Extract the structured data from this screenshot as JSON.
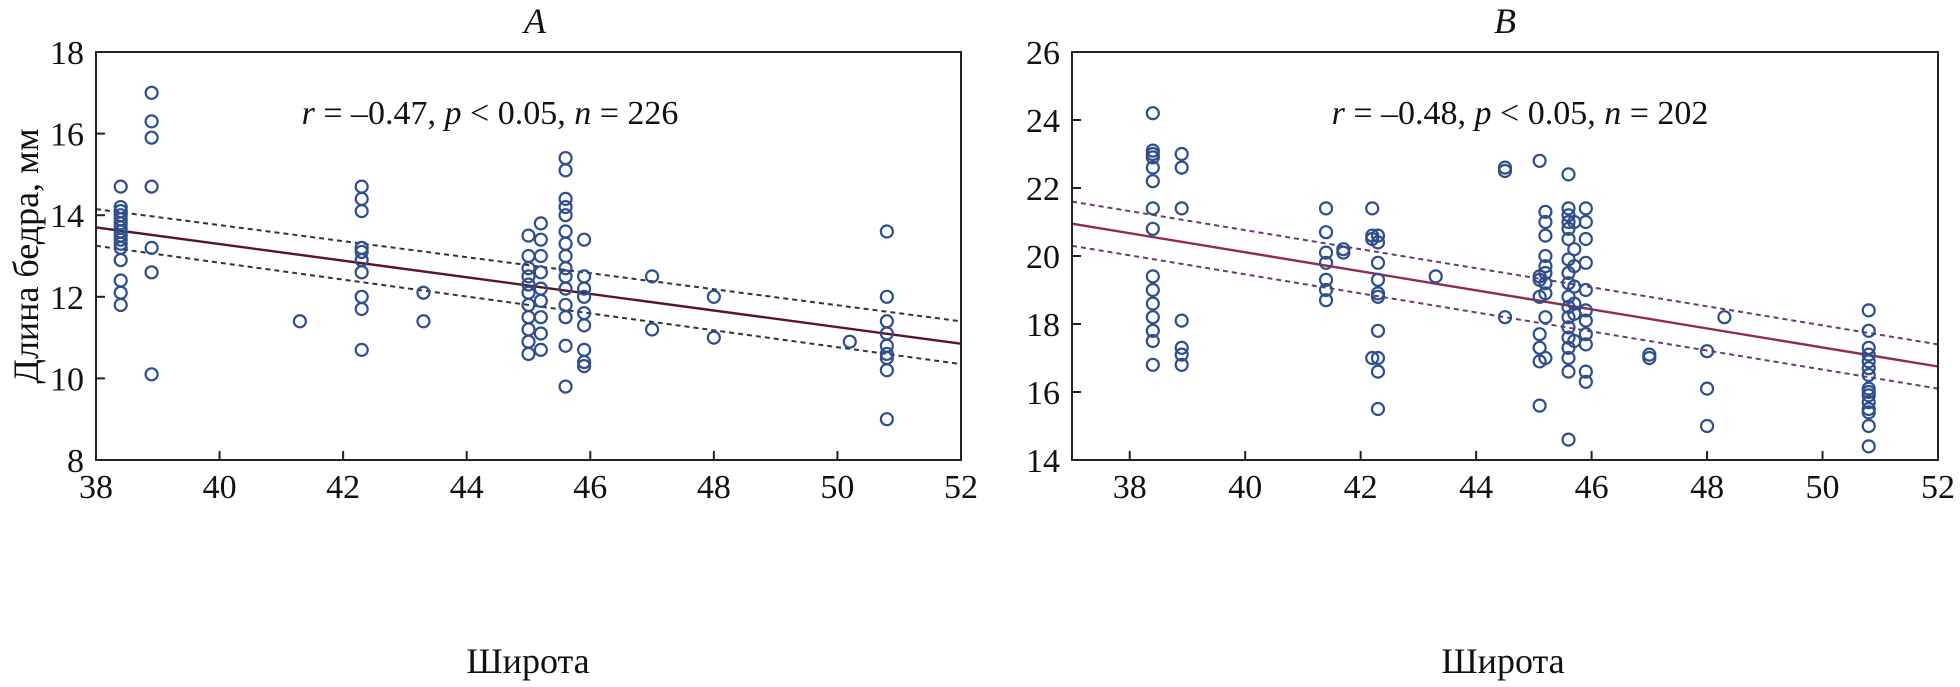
{
  "chart_data": [
    {
      "type": "scatter",
      "title": "A",
      "xlabel": "Широта",
      "ylabel": "Длина бедра, мм",
      "xlim": [
        38,
        52
      ],
      "ylim": [
        8,
        18
      ],
      "xticks": [
        "38",
        "40",
        "42",
        "44",
        "46",
        "48",
        "50",
        "52"
      ],
      "yticks": [
        "8",
        "10",
        "12",
        "14",
        "16",
        "18"
      ],
      "annotation": {
        "r": "r",
        "r_value": " = –0.47, ",
        "p": "p",
        "p_value": " < 0.05, ",
        "n": "n",
        "n_value": " = 226"
      },
      "grid": false,
      "fit": {
        "x": [
          38,
          52
        ],
        "y": [
          13.7,
          10.85
        ]
      },
      "ci_upper": {
        "x": [
          38,
          52
        ],
        "y": [
          14.15,
          11.4
        ]
      },
      "ci_lower": {
        "x": [
          38,
          52
        ],
        "y": [
          13.25,
          10.35
        ]
      },
      "points": [
        [
          38.4,
          14.7
        ],
        [
          38.4,
          14.2
        ],
        [
          38.4,
          14.1
        ],
        [
          38.4,
          14.0
        ],
        [
          38.4,
          13.9
        ],
        [
          38.4,
          13.8
        ],
        [
          38.4,
          13.7
        ],
        [
          38.4,
          13.6
        ],
        [
          38.4,
          13.5
        ],
        [
          38.4,
          13.4
        ],
        [
          38.4,
          13.3
        ],
        [
          38.4,
          13.2
        ],
        [
          38.4,
          12.9
        ],
        [
          38.4,
          12.4
        ],
        [
          38.4,
          12.1
        ],
        [
          38.4,
          11.8
        ],
        [
          38.9,
          17.0
        ],
        [
          38.9,
          16.3
        ],
        [
          38.9,
          15.9
        ],
        [
          38.9,
          14.7
        ],
        [
          38.9,
          13.2
        ],
        [
          38.9,
          12.6
        ],
        [
          38.9,
          10.1
        ],
        [
          41.3,
          11.4
        ],
        [
          42.3,
          14.7
        ],
        [
          42.3,
          14.4
        ],
        [
          42.3,
          14.1
        ],
        [
          42.3,
          13.2
        ],
        [
          42.3,
          13.1
        ],
        [
          42.3,
          12.9
        ],
        [
          42.3,
          12.6
        ],
        [
          42.3,
          12.0
        ],
        [
          42.3,
          11.7
        ],
        [
          42.3,
          10.7
        ],
        [
          43.3,
          12.1
        ],
        [
          43.3,
          11.4
        ],
        [
          45.0,
          13.5
        ],
        [
          45.0,
          13.0
        ],
        [
          45.0,
          12.7
        ],
        [
          45.0,
          12.5
        ],
        [
          45.0,
          12.3
        ],
        [
          45.0,
          12.1
        ],
        [
          45.0,
          11.8
        ],
        [
          45.0,
          11.5
        ],
        [
          45.0,
          11.2
        ],
        [
          45.0,
          10.9
        ],
        [
          45.0,
          10.6
        ],
        [
          45.2,
          13.8
        ],
        [
          45.2,
          13.4
        ],
        [
          45.2,
          13.0
        ],
        [
          45.2,
          12.6
        ],
        [
          45.2,
          12.2
        ],
        [
          45.2,
          11.9
        ],
        [
          45.2,
          11.5
        ],
        [
          45.2,
          11.1
        ],
        [
          45.2,
          10.7
        ],
        [
          45.6,
          15.4
        ],
        [
          45.6,
          15.1
        ],
        [
          45.6,
          14.4
        ],
        [
          45.6,
          14.2
        ],
        [
          45.6,
          14.0
        ],
        [
          45.6,
          13.6
        ],
        [
          45.6,
          13.3
        ],
        [
          45.6,
          13.0
        ],
        [
          45.6,
          12.7
        ],
        [
          45.6,
          12.5
        ],
        [
          45.6,
          12.2
        ],
        [
          45.6,
          11.8
        ],
        [
          45.6,
          11.5
        ],
        [
          45.6,
          10.8
        ],
        [
          45.6,
          9.8
        ],
        [
          45.9,
          13.4
        ],
        [
          45.9,
          12.5
        ],
        [
          45.9,
          12.2
        ],
        [
          45.9,
          12.0
        ],
        [
          45.9,
          11.6
        ],
        [
          45.9,
          11.3
        ],
        [
          45.9,
          10.7
        ],
        [
          45.9,
          10.4
        ],
        [
          45.9,
          10.3
        ],
        [
          47.0,
          12.5
        ],
        [
          47.0,
          11.2
        ],
        [
          48.0,
          12.0
        ],
        [
          48.0,
          11.0
        ],
        [
          50.2,
          10.9
        ],
        [
          50.8,
          13.6
        ],
        [
          50.8,
          12.0
        ],
        [
          50.8,
          11.4
        ],
        [
          50.8,
          11.1
        ],
        [
          50.8,
          10.8
        ],
        [
          50.8,
          10.6
        ],
        [
          50.8,
          10.5
        ],
        [
          50.8,
          10.2
        ],
        [
          50.8,
          9.0
        ]
      ]
    },
    {
      "type": "scatter",
      "title": "B",
      "xlabel": "Широта",
      "ylabel": "",
      "xlim": [
        37,
        52
      ],
      "ylim": [
        14,
        26
      ],
      "xticks": [
        "38",
        "40",
        "42",
        "44",
        "46",
        "48",
        "50",
        "52"
      ],
      "yticks": [
        "14",
        "16",
        "18",
        "20",
        "22",
        "24",
        "26"
      ],
      "annotation": {
        "r": "r",
        "r_value": " = –0.48, ",
        "p": "p",
        "p_value": " < 0.05, ",
        "n": "n",
        "n_value": " = 202"
      },
      "grid": false,
      "fit": {
        "x": [
          37,
          52
        ],
        "y": [
          20.95,
          16.75
        ]
      },
      "ci_upper": {
        "x": [
          37,
          52
        ],
        "y": [
          21.6,
          17.4
        ]
      },
      "ci_lower": {
        "x": [
          37,
          52
        ],
        "y": [
          20.3,
          16.1
        ]
      },
      "points": [
        [
          38.4,
          24.2
        ],
        [
          38.4,
          23.1
        ],
        [
          38.4,
          23.0
        ],
        [
          38.4,
          22.9
        ],
        [
          38.4,
          22.6
        ],
        [
          38.4,
          22.2
        ],
        [
          38.4,
          21.4
        ],
        [
          38.4,
          20.8
        ],
        [
          38.4,
          19.4
        ],
        [
          38.4,
          19.0
        ],
        [
          38.4,
          18.6
        ],
        [
          38.4,
          18.2
        ],
        [
          38.4,
          17.8
        ],
        [
          38.4,
          17.5
        ],
        [
          38.4,
          16.8
        ],
        [
          38.9,
          23.0
        ],
        [
          38.9,
          22.6
        ],
        [
          38.9,
          21.4
        ],
        [
          38.9,
          18.1
        ],
        [
          38.9,
          17.3
        ],
        [
          38.9,
          17.1
        ],
        [
          38.9,
          16.8
        ],
        [
          41.4,
          21.4
        ],
        [
          41.4,
          20.7
        ],
        [
          41.4,
          20.1
        ],
        [
          41.4,
          19.8
        ],
        [
          41.4,
          19.3
        ],
        [
          41.4,
          19.0
        ],
        [
          41.4,
          18.7
        ],
        [
          41.7,
          20.2
        ],
        [
          41.7,
          20.1
        ],
        [
          42.2,
          21.4
        ],
        [
          42.2,
          20.6
        ],
        [
          42.2,
          20.5
        ],
        [
          42.2,
          17.0
        ],
        [
          42.3,
          20.6
        ],
        [
          42.3,
          20.4
        ],
        [
          42.3,
          19.8
        ],
        [
          42.3,
          19.3
        ],
        [
          42.3,
          18.9
        ],
        [
          42.3,
          18.8
        ],
        [
          42.3,
          17.8
        ],
        [
          42.3,
          17.0
        ],
        [
          42.3,
          16.6
        ],
        [
          42.3,
          15.5
        ],
        [
          43.3,
          19.4
        ],
        [
          44.5,
          22.6
        ],
        [
          44.5,
          22.5
        ],
        [
          44.5,
          18.2
        ],
        [
          45.1,
          22.8
        ],
        [
          45.1,
          19.4
        ],
        [
          45.1,
          19.3
        ],
        [
          45.1,
          18.8
        ],
        [
          45.1,
          17.7
        ],
        [
          45.1,
          17.3
        ],
        [
          45.1,
          16.9
        ],
        [
          45.1,
          15.6
        ],
        [
          45.2,
          21.3
        ],
        [
          45.2,
          21.0
        ],
        [
          45.2,
          20.6
        ],
        [
          45.2,
          20.0
        ],
        [
          45.2,
          19.7
        ],
        [
          45.2,
          19.5
        ],
        [
          45.2,
          19.2
        ],
        [
          45.2,
          18.9
        ],
        [
          45.2,
          18.2
        ],
        [
          45.2,
          17.0
        ],
        [
          45.6,
          22.4
        ],
        [
          45.6,
          21.4
        ],
        [
          45.6,
          21.2
        ],
        [
          45.6,
          21.0
        ],
        [
          45.6,
          20.8
        ],
        [
          45.6,
          20.5
        ],
        [
          45.6,
          19.9
        ],
        [
          45.6,
          19.5
        ],
        [
          45.6,
          19.2
        ],
        [
          45.6,
          18.8
        ],
        [
          45.6,
          18.5
        ],
        [
          45.6,
          18.2
        ],
        [
          45.6,
          17.9
        ],
        [
          45.6,
          17.6
        ],
        [
          45.6,
          17.3
        ],
        [
          45.6,
          17.0
        ],
        [
          45.6,
          16.6
        ],
        [
          45.6,
          14.6
        ],
        [
          45.7,
          21.0
        ],
        [
          45.7,
          20.2
        ],
        [
          45.7,
          19.7
        ],
        [
          45.7,
          19.1
        ],
        [
          45.7,
          18.6
        ],
        [
          45.7,
          18.3
        ],
        [
          45.7,
          17.5
        ],
        [
          45.9,
          21.4
        ],
        [
          45.9,
          21.0
        ],
        [
          45.9,
          20.5
        ],
        [
          45.9,
          19.8
        ],
        [
          45.9,
          19.0
        ],
        [
          45.9,
          18.4
        ],
        [
          45.9,
          18.1
        ],
        [
          45.9,
          17.7
        ],
        [
          45.9,
          17.4
        ],
        [
          45.9,
          16.6
        ],
        [
          45.9,
          16.3
        ],
        [
          47.0,
          17.1
        ],
        [
          47.0,
          17.0
        ],
        [
          48.0,
          17.2
        ],
        [
          48.0,
          16.1
        ],
        [
          48.0,
          15.0
        ],
        [
          48.3,
          18.2
        ],
        [
          50.8,
          18.4
        ],
        [
          50.8,
          17.8
        ],
        [
          50.8,
          17.3
        ],
        [
          50.8,
          17.1
        ],
        [
          50.8,
          16.9
        ],
        [
          50.8,
          16.7
        ],
        [
          50.8,
          16.5
        ],
        [
          50.8,
          16.1
        ],
        [
          50.8,
          16.0
        ],
        [
          50.8,
          15.9
        ],
        [
          50.8,
          15.7
        ],
        [
          50.8,
          15.5
        ],
        [
          50.8,
          15.4
        ],
        [
          50.8,
          15.0
        ],
        [
          50.8,
          14.4
        ]
      ]
    }
  ]
}
